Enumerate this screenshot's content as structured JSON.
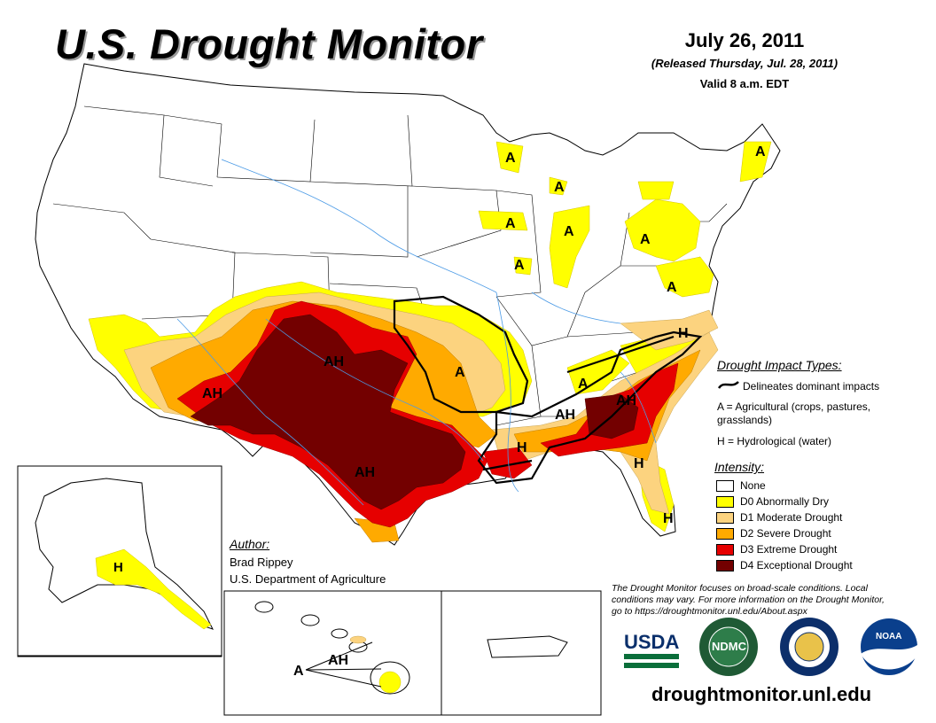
{
  "header": {
    "title": "U.S. Drought Monitor",
    "date": "July 26, 2011",
    "released": "(Released Thursday, Jul. 28, 2011)",
    "valid": "Valid 8 a.m. EDT"
  },
  "impact_legend": {
    "title": "Drought Impact Types:",
    "line_label": "Delineates dominant impacts",
    "a_label": "A = Agricultural (crops, pastures, grasslands)",
    "h_label": "H = Hydrological (water)"
  },
  "intensity_legend": {
    "title": "Intensity:",
    "items": [
      {
        "label": "None",
        "color": "#ffffff"
      },
      {
        "label": "D0 Abnormally Dry",
        "color": "#ffff00"
      },
      {
        "label": "D1 Moderate Drought",
        "color": "#fcd37f"
      },
      {
        "label": "D2 Severe Drought",
        "color": "#ffaa00"
      },
      {
        "label": "D3 Extreme Drought",
        "color": "#e60000"
      },
      {
        "label": "D4 Exceptional Drought",
        "color": "#730000"
      }
    ]
  },
  "author": {
    "title": "Author:",
    "name": "Brad Rippey",
    "org": "U.S. Department of Agriculture"
  },
  "disclaimer": "The Drought Monitor focuses on broad-scale conditions. Local conditions may vary. For more information on the Drought Monitor, go to https://droughtmonitor.unl.edu/About.aspx",
  "logos": {
    "usda": "USDA",
    "ndmc": "NDMC",
    "noaa": "NOAA"
  },
  "url": "droughtmonitor.unl.edu",
  "map_labels": {
    "ah_southwest": "AH",
    "ah_oklahoma": "AH",
    "ah_texas": "AH",
    "a_arkansas": "A",
    "ah_mississippi": "AH",
    "h_louisiana": "H",
    "ah_georgia": "AH",
    "a_tennessee": "A",
    "h_virginia": "H",
    "h_georgia_coast": "H",
    "h_florida": "H",
    "a_upper_michigan": "A",
    "a_lower_michigan_north": "A",
    "a_wisconsin": "A",
    "a_illinois": "A",
    "a_indiana": "A",
    "a_pennsylvania": "A",
    "a_maryland": "A",
    "a_maine": "A",
    "h_alaska": "H",
    "a_hawaii": "A",
    "ah_hawaii": "AH"
  }
}
